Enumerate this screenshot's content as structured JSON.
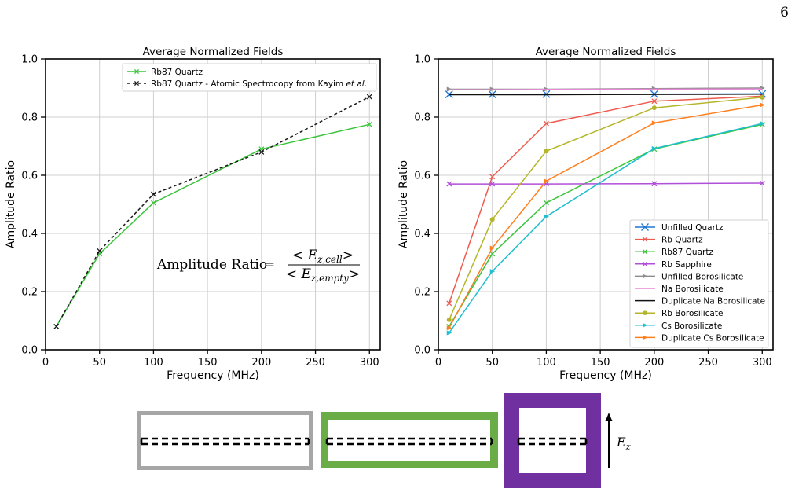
{
  "page_number": "6",
  "chart_data": [
    {
      "type": "line",
      "title": "Average Normalized Fields",
      "xlabel": "Frequency (MHz)",
      "ylabel": "Amplitude Ratio",
      "xlim": [
        0,
        310
      ],
      "ylim": [
        0,
        1.0
      ],
      "xticks": [
        0,
        50,
        100,
        150,
        200,
        250,
        300
      ],
      "yticks": [
        0.0,
        0.2,
        0.4,
        0.6,
        0.8,
        1.0
      ],
      "xtick_labels": [
        "0",
        "50",
        "100",
        "150",
        "200",
        "250",
        "300"
      ],
      "ytick_labels": [
        "0.0",
        "0.2",
        "0.4",
        "0.6",
        "0.8",
        "1.0"
      ],
      "grid": true,
      "legend_position": "top-right",
      "annotation": {
        "lhs": "Amplitude Ratio",
        "eq": "=",
        "num_open": "< E",
        "num_sub": "z,cell",
        "num_close": ">",
        "den_open": "< E",
        "den_sub": "z,empty",
        "den_close": ">"
      },
      "series": [
        {
          "name": "Rb87 Quartz",
          "color": "#3cc43c",
          "marker": "x",
          "dash": "solid",
          "x": [
            10,
            50,
            100,
            200,
            300
          ],
          "y": [
            0.08,
            0.33,
            0.505,
            0.69,
            0.775
          ]
        },
        {
          "name": "Rb87 Quartz - Atomic Spectrocopy from Kayim",
          "name_suffix_italic": "et al.",
          "name_end": ".",
          "color": "#1a1a1a",
          "marker": "x",
          "dash": "dashed",
          "x": [
            10,
            50,
            100,
            200,
            300
          ],
          "y": [
            0.08,
            0.34,
            0.535,
            0.68,
            0.87
          ]
        }
      ]
    },
    {
      "type": "line",
      "title": "Average Normalized Fields",
      "xlabel": "Frequency (MHz)",
      "ylabel": "Amplitude Ratio",
      "xlim": [
        0,
        310
      ],
      "ylim": [
        0,
        1.0
      ],
      "xticks": [
        0,
        50,
        100,
        150,
        200,
        250,
        300
      ],
      "yticks": [
        0.0,
        0.2,
        0.4,
        0.6,
        0.8,
        1.0
      ],
      "xtick_labels": [
        "0",
        "50",
        "100",
        "150",
        "200",
        "250",
        "300"
      ],
      "ytick_labels": [
        "0.0",
        "0.2",
        "0.4",
        "0.6",
        "0.8",
        "1.0"
      ],
      "grid": true,
      "legend_position": "lower-right",
      "series": [
        {
          "name": "Unfilled Quartz",
          "color": "#1f77d4",
          "marker": "x",
          "x": [
            10,
            50,
            100,
            200,
            300
          ],
          "y": [
            0.878,
            0.878,
            0.879,
            0.879,
            0.88
          ]
        },
        {
          "name": "Rb Quartz",
          "color": "#ef5a4f",
          "marker": "x",
          "x": [
            10,
            50,
            100,
            200,
            300
          ],
          "y": [
            0.16,
            0.595,
            0.778,
            0.855,
            0.872
          ]
        },
        {
          "name": "Rb87 Quartz",
          "color": "#3cc43c",
          "marker": "x",
          "x": [
            10,
            50,
            100,
            200,
            300
          ],
          "y": [
            0.08,
            0.33,
            0.505,
            0.69,
            0.775
          ]
        },
        {
          "name": "Rb Sapphire",
          "color": "#b04fd8",
          "marker": "x",
          "x": [
            10,
            50,
            100,
            200,
            300
          ],
          "y": [
            0.57,
            0.57,
            0.57,
            0.571,
            0.573
          ]
        },
        {
          "name": "Unfilled Borosilicate",
          "color": "#8c8c8c",
          "marker": "tri",
          "x": [
            10,
            50,
            100,
            200,
            300
          ],
          "y": [
            0.896,
            0.896,
            0.896,
            0.898,
            0.9
          ]
        },
        {
          "name": "Na Borosilicate",
          "color": "#e68ad6",
          "marker": "none",
          "x": [
            10,
            50,
            100,
            200,
            300
          ],
          "y": [
            0.894,
            0.894,
            0.895,
            0.896,
            0.897
          ]
        },
        {
          "name": "Duplicate Na Borosilicate",
          "color": "#111111",
          "marker": "none",
          "x": [
            10,
            50,
            100,
            200,
            300
          ],
          "y": [
            0.877,
            0.877,
            0.877,
            0.878,
            0.879
          ]
        },
        {
          "name": "Rb Borosilicate",
          "color": "#b5b52a",
          "marker": "circle",
          "x": [
            10,
            50,
            100,
            200,
            300
          ],
          "y": [
            0.103,
            0.448,
            0.683,
            0.832,
            0.868
          ]
        },
        {
          "name": "Cs Borosilicate",
          "color": "#1fbfcf",
          "marker": "tri",
          "x": [
            10,
            50,
            100,
            200,
            300
          ],
          "y": [
            0.058,
            0.27,
            0.458,
            0.692,
            0.778
          ]
        },
        {
          "name": "Duplicate Cs Borosilicate",
          "color": "#ff7f1e",
          "marker": "tri",
          "x": [
            10,
            50,
            100,
            200,
            300
          ],
          "y": [
            0.075,
            0.35,
            0.58,
            0.78,
            0.842
          ]
        }
      ]
    }
  ],
  "diagram": {
    "field_label_main": "E",
    "field_label_sub": "z",
    "cells": [
      {
        "name": "gray-cell",
        "color": "#a6a6a6"
      },
      {
        "name": "green-cell",
        "color": "#6aac45"
      },
      {
        "name": "purple-cell",
        "color": "#7030a0"
      }
    ]
  }
}
